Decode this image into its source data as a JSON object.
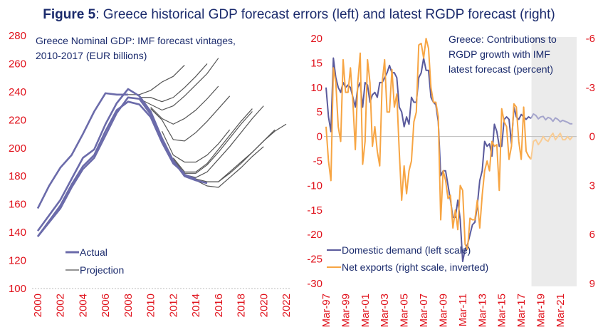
{
  "header": {
    "figure_label": "Figure 5",
    "title_rest": ": Greece historical GDP forecast errors (left) and latest RGDP forecast (right)"
  },
  "colors": {
    "title": "#1a2a6c",
    "ticks": "#e0101a",
    "actual": "#6b6baa",
    "projection": "#555555",
    "domestic_demand": "#5a5a9c",
    "net_exports": "#f7a543",
    "domestic_demand_forecast": "#a5a5cc",
    "net_exports_forecast": "#f9cc94",
    "forecast_shade": "#ebebeb"
  },
  "chart_data": [
    {
      "type": "line",
      "title_lines": [
        "Greece Nominal GDP: IMF forecast vintages,",
        "2010-2017 (EUR billions)"
      ],
      "ylim": [
        100,
        280
      ],
      "yticks": [
        "280",
        "260",
        "240",
        "220",
        "200",
        "180",
        "160",
        "140",
        "120",
        "100"
      ],
      "xlim": [
        2000,
        2022
      ],
      "xticks": [
        "2000",
        "2002",
        "2004",
        "2006",
        "2008",
        "2010",
        "2012",
        "2014",
        "2016",
        "2018",
        "2020",
        "2022"
      ],
      "legend": {
        "actual": "Actual",
        "projection": "Projection"
      },
      "legend_position": "bottom-left",
      "actual_series": [
        {
          "x": [
            2000,
            2001,
            2002,
            2003,
            2004,
            2005,
            2006,
            2007,
            2008
          ],
          "y": [
            157,
            173,
            186,
            195,
            210,
            226,
            239,
            238,
            238
          ]
        },
        {
          "x": [
            2000,
            2001,
            2002,
            2003,
            2004,
            2005,
            2006,
            2007,
            2008,
            2009,
            2010,
            2011,
            2012,
            2013,
            2014,
            2015
          ],
          "y": [
            141,
            152,
            163,
            178,
            193,
            199,
            217,
            232,
            242,
            237,
            226,
            207,
            191,
            180,
            177,
            175
          ]
        },
        {
          "x": [
            2000,
            2001,
            2002,
            2003,
            2004,
            2005,
            2006,
            2007,
            2008,
            2009,
            2010,
            2011,
            2012,
            2013,
            2014
          ],
          "y": [
            137,
            147,
            157,
            172,
            185,
            193,
            209,
            225,
            236,
            235,
            224,
            205,
            190,
            181,
            178
          ]
        },
        {
          "x": [
            2000,
            2001,
            2002,
            2003,
            2004,
            2005,
            2006,
            2007,
            2008,
            2009,
            2010,
            2011,
            2012,
            2013
          ],
          "y": [
            137,
            148,
            159,
            174,
            187,
            195,
            212,
            227,
            233,
            231,
            222,
            204,
            189,
            182
          ]
        }
      ],
      "projection_series": [
        {
          "x": [
            2008,
            2009,
            2010,
            2011,
            2012,
            2013
          ],
          "y": [
            238,
            238,
            241,
            247,
            251,
            259
          ]
        },
        {
          "x": [
            2009,
            2010,
            2011,
            2012,
            2013,
            2014,
            2015
          ],
          "y": [
            236,
            236,
            233,
            236,
            243,
            251,
            260
          ]
        },
        {
          "x": [
            2009,
            2010,
            2011,
            2012,
            2013,
            2014,
            2015,
            2016
          ],
          "y": [
            235,
            231,
            227,
            230,
            237,
            245,
            253,
            264
          ]
        },
        {
          "x": [
            2010,
            2011,
            2012,
            2013,
            2014,
            2015,
            2016
          ],
          "y": [
            229,
            221,
            217,
            221,
            227,
            235,
            244
          ]
        },
        {
          "x": [
            2010,
            2011,
            2012,
            2013,
            2014,
            2015,
            2016,
            2017
          ],
          "y": [
            228,
            220,
            206,
            205,
            211,
            219,
            228,
            237
          ]
        },
        {
          "x": [
            2011,
            2012,
            2013,
            2014,
            2015,
            2016,
            2017
          ],
          "y": [
            212,
            195,
            190,
            190,
            195,
            203,
            213
          ]
        },
        {
          "x": [
            2012,
            2013,
            2014,
            2015,
            2016,
            2017,
            2018,
            2019
          ],
          "y": [
            193,
            183,
            183,
            189,
            199,
            209,
            219,
            228
          ]
        },
        {
          "x": [
            2012,
            2013,
            2014,
            2015,
            2016,
            2017,
            2018,
            2019
          ],
          "y": [
            192,
            182,
            182,
            188,
            197,
            207,
            217,
            226
          ]
        },
        {
          "x": [
            2013,
            2014,
            2015,
            2016,
            2017,
            2018,
            2019,
            2020
          ],
          "y": [
            181,
            179,
            183,
            192,
            201,
            211,
            221,
            230
          ]
        },
        {
          "x": [
            2014,
            2015,
            2016,
            2017,
            2018,
            2019,
            2020,
            2021,
            2022
          ],
          "y": [
            178,
            176,
            176,
            182,
            189,
            197,
            205,
            212,
            217
          ]
        },
        {
          "x": [
            2014,
            2015,
            2016,
            2017,
            2018,
            2019,
            2020
          ],
          "y": [
            177,
            173,
            172,
            179,
            186,
            194,
            201
          ]
        },
        {
          "x": [
            2015,
            2016,
            2017,
            2018,
            2019,
            2020,
            2021
          ],
          "y": [
            176,
            176,
            183,
            190,
            197,
            205,
            213
          ]
        }
      ]
    },
    {
      "type": "line",
      "title_lines": [
        "Greece: Contributions to",
        "RGDP growth with IMF",
        "latest forecast (percent)"
      ],
      "start": "Mar-97",
      "frequency": "quarterly",
      "forecast_from_index": 85,
      "ylim_left": [
        -30,
        20
      ],
      "yticks_left": [
        "20",
        "15",
        "10",
        "5",
        "0",
        "-5",
        "-10",
        "-15",
        "-20",
        "-25",
        "-30"
      ],
      "ylim_right": [
        -6,
        9
      ],
      "right_axis_inverted": true,
      "yticks_right": [
        "-6",
        "-3",
        "0",
        "3",
        "6",
        "9"
      ],
      "xticks": [
        "Mar-97",
        "Mar-99",
        "Mar-01",
        "Mar-03",
        "Mar-05",
        "Mar-07",
        "Mar-09",
        "Mar-11",
        "Mar-13",
        "Mar-15",
        "Mar-17",
        "Mar-19",
        "Mar-21"
      ],
      "legend_position": "bottom-left",
      "series": [
        {
          "name": "Domestic demand (left scale)",
          "axis": "left",
          "values": [
            10,
            4,
            1,
            16,
            12,
            10,
            9,
            11,
            10,
            10.5,
            10,
            8,
            6,
            10,
            11,
            6,
            11,
            10.5,
            7,
            8.5,
            9,
            8,
            11,
            11,
            12,
            13,
            14.5,
            13,
            13,
            12,
            6,
            5,
            2,
            4,
            2.5,
            8,
            7,
            7,
            12,
            13,
            16,
            13.5,
            13.5,
            8,
            7,
            6.5,
            3,
            -8,
            -7,
            -7,
            -10,
            -13,
            -16.5,
            -16.5,
            -13,
            -17,
            -25.5,
            -23,
            -22,
            -20,
            -18,
            -17.5,
            -14,
            -9,
            -7,
            -1,
            -2,
            -1.5,
            -4,
            2.5,
            1,
            -2,
            -2,
            3.5,
            4,
            3.5,
            -1.5,
            6,
            4,
            3.5,
            4.5,
            4,
            3.5,
            4,
            3.7,
            4.6,
            4.3,
            3.6,
            4.0,
            4.1,
            3.4,
            3.9,
            3.7,
            3.1,
            3.8,
            3.5,
            3.0,
            3.3,
            3.1,
            2.9,
            2.6,
            2.6
          ]
        },
        {
          "name": "Net exports (right scale, inverted)",
          "axis": "right",
          "values": [
            -0.6,
            1.5,
            2.7,
            -4.2,
            -3.3,
            -0.6,
            0.3,
            -4.7,
            -2.7,
            -2.7,
            -4.2,
            -2.1,
            0.8,
            -3.3,
            -5.1,
            1.7,
            0.3,
            -4.7,
            -3.3,
            0.6,
            -0.6,
            0.9,
            1.8,
            -3.3,
            -4.7,
            -1.5,
            -1.5,
            -4.1,
            -1.8,
            -2.6,
            0.9,
            3.9,
            1.8,
            3.5,
            2.1,
            1.5,
            -0.9,
            -1.5,
            -5.6,
            -5.7,
            -4.8,
            -6,
            -5.4,
            -3,
            -2.1,
            -2.1,
            -1.2,
            5.1,
            2.1,
            2.7,
            3.8,
            3.6,
            5.6,
            4.5,
            5.7,
            3,
            3.3,
            6.6,
            6.9,
            5,
            5.1,
            5.1,
            3.9,
            5.6,
            3.6,
            2.1,
            1.5,
            2.1,
            0.3,
            0.6,
            0.5,
            3.3,
            -1.7,
            -0.9,
            -0.6,
            1.4,
            0.6,
            -2,
            -1.8,
            0.3,
            1.4,
            -1.8,
            0.9,
            1.2,
            1.4,
            0.3,
            0.2,
            0.5,
            0.3,
            0,
            0.2,
            0.3,
            0,
            -0.2,
            0.2,
            0,
            -0.2,
            0.2,
            0.2,
            0,
            0.2,
            0
          ]
        }
      ]
    }
  ]
}
